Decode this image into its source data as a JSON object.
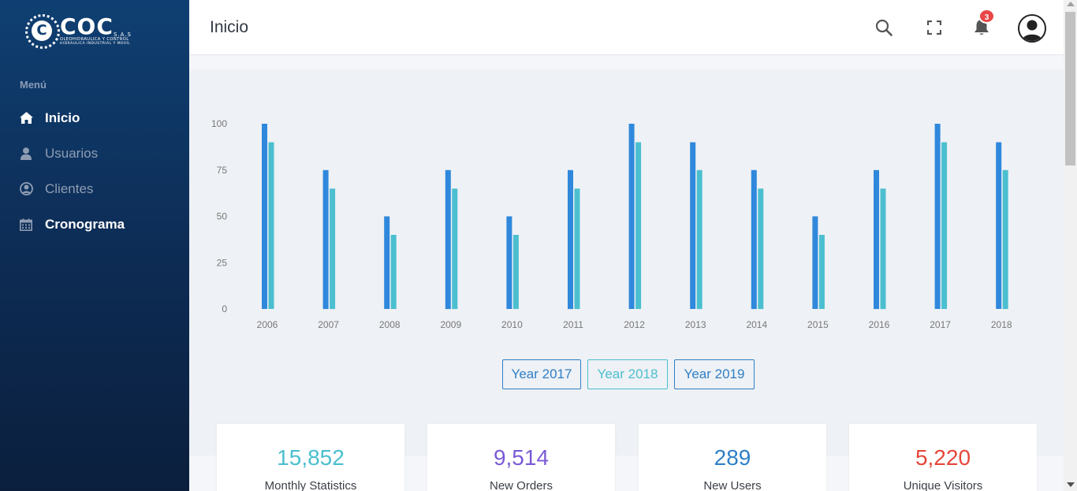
{
  "sidebar": {
    "logo": {
      "word": "COC",
      "sas": "S.A.S",
      "tagline1": "OLEOHIDRAULICA Y CONTROL",
      "tagline2": "HIDRAULICA INDUSTRIAL Y MOVIL"
    },
    "menu_title": "Menú",
    "items": [
      {
        "label": "Inicio",
        "icon": "home-icon",
        "active": true
      },
      {
        "label": "Usuarios",
        "icon": "user-icon",
        "active": false
      },
      {
        "label": "Clientes",
        "icon": "user-circle-icon",
        "active": false
      },
      {
        "label": "Cronograma",
        "icon": "calendar-icon",
        "active": false
      }
    ]
  },
  "header": {
    "title": "Inicio",
    "notification_count": "3",
    "icons": [
      "search-icon",
      "fullscreen-icon",
      "bell-icon",
      "avatar"
    ]
  },
  "year_buttons": [
    "Year 2017",
    "Year 2018",
    "Year 2019"
  ],
  "stats": [
    {
      "value": "15,852",
      "label": "Monthly Statistics",
      "color": "#4bbfcf"
    },
    {
      "value": "9,514",
      "label": "New Orders",
      "color": "#7b5ad6"
    },
    {
      "value": "289",
      "label": "New Users",
      "color": "#2f7fc6"
    },
    {
      "value": "5,220",
      "label": "Unique Visitors",
      "color": "#e5473a"
    }
  ],
  "colors": {
    "series_a": "#2f88dc",
    "series_b": "#4bbfcf",
    "sidebar_top": "#0f3f72",
    "sidebar_bottom": "#0b1f3d"
  },
  "chart_data": {
    "type": "bar",
    "categories": [
      "2006",
      "2007",
      "2008",
      "2009",
      "2010",
      "2011",
      "2012",
      "2013",
      "2014",
      "2015",
      "2016",
      "2017",
      "2018"
    ],
    "series": [
      {
        "values": [
          100,
          75,
          50,
          75,
          50,
          75,
          100,
          90,
          75,
          50,
          75,
          100,
          90
        ]
      },
      {
        "values": [
          90,
          65,
          40,
          65,
          40,
          65,
          90,
          75,
          65,
          40,
          65,
          90,
          75
        ]
      }
    ],
    "yticks": [
      "0",
      "25",
      "50",
      "75",
      "100"
    ],
    "ylim": [
      0,
      100
    ],
    "grid": false,
    "legend": "none"
  }
}
